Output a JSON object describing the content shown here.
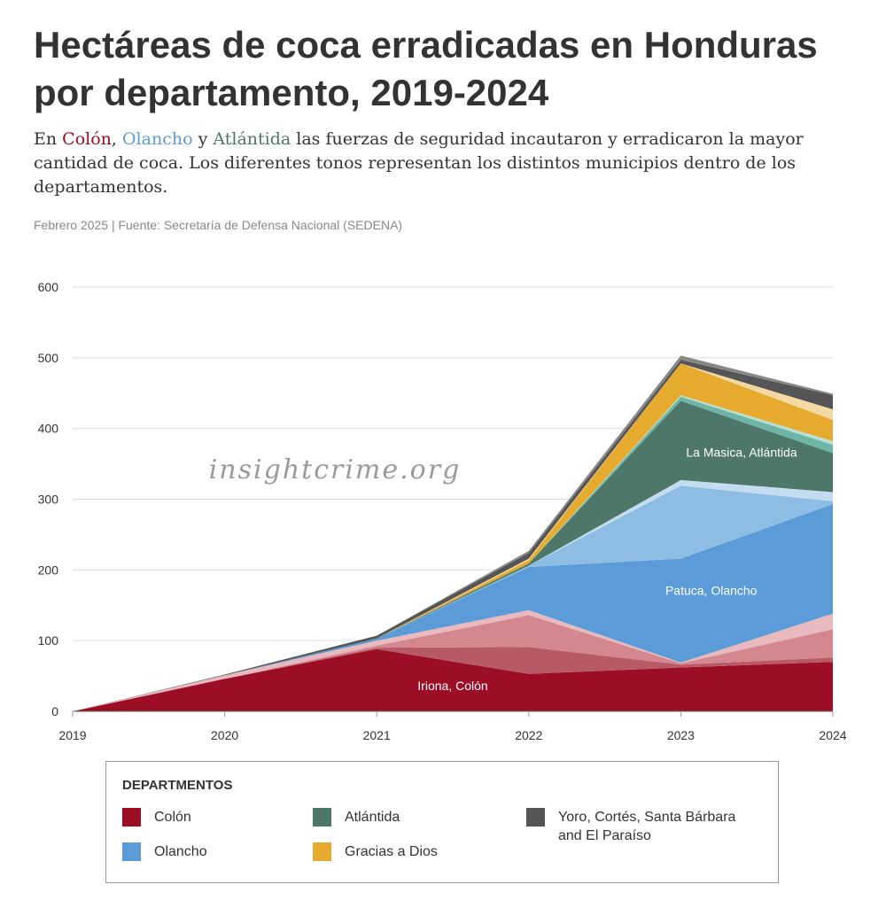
{
  "title": "Hectáreas de coca erradicadas en Honduras por departamento, 2019-2024",
  "subtitle": {
    "prefix": "En ",
    "colon": "Colón",
    "sep1": ", ",
    "olancho": "Olancho",
    "sep2": " y ",
    "atlantida": "Atlántida",
    "rest": " las fuerzas de seguridad incautaron y erradicaron la mayor cantidad de coca. Los diferentes tonos representan los distintos municipios dentro de los departamentos."
  },
  "source": "Febrero 2025 | Fuente: Secretaría de Defensa Nacional (SEDENA)",
  "watermark": "insightcrime.org",
  "colors": {
    "colon": "#9b0e26",
    "olancho": "#5b9bd8",
    "atlantida": "#4d7768",
    "gracias": "#e6ab2e",
    "otros": "#555555"
  },
  "legend": {
    "title": "DEPARTMENTOS",
    "items": [
      {
        "label": "Colón",
        "color": "#9b0e26"
      },
      {
        "label": "Olancho",
        "color": "#5b9bd8"
      },
      {
        "label": "Atlántida",
        "color": "#4d7768"
      },
      {
        "label": "Gracias a Dios",
        "color": "#e6ab2e"
      },
      {
        "label": "Yoro, Cortés, Santa Bárbara and El Paraíso",
        "color": "#555555"
      }
    ]
  },
  "chart_data": {
    "type": "area",
    "stacked": true,
    "title": "Hectáreas de coca erradicadas en Honduras por departamento, 2019-2024",
    "x": [
      2019,
      2020,
      2021,
      2022,
      2023,
      2024
    ],
    "ylim": [
      0,
      600
    ],
    "yticks": [
      0,
      100,
      200,
      300,
      400,
      500,
      600
    ],
    "grid": true,
    "legend_position": "bottom",
    "annotations": [
      {
        "text": "Iriona, Colón",
        "x": 2021.5,
        "y": 30
      },
      {
        "text": "Patuca, Olancho",
        "x": 2023.2,
        "y": 165
      },
      {
        "text": "La Masica, Atlántida",
        "x": 2023.4,
        "y": 360
      }
    ],
    "series": [
      {
        "name": "Colón",
        "department": "Colón",
        "color": "#9b0e26",
        "values": [
          0,
          46,
          88,
          53,
          62,
          70
        ]
      },
      {
        "department": "Colón",
        "color": "#b85a66",
        "values": [
          0,
          0,
          2,
          38,
          4,
          6
        ]
      },
      {
        "department": "Colón",
        "color": "#d4878f",
        "values": [
          0,
          0,
          3,
          45,
          2,
          40
        ]
      },
      {
        "department": "Colón",
        "color": "#e8bac0",
        "values": [
          0,
          5,
          7,
          7,
          1,
          22
        ]
      },
      {
        "name": "Olancho",
        "department": "Olancho",
        "color": "#5b9bd8",
        "values": [
          0,
          0,
          3,
          61,
          147,
          155
        ]
      },
      {
        "department": "Olancho",
        "color": "#8dbde2",
        "values": [
          0,
          0,
          0,
          2,
          103,
          4
        ]
      },
      {
        "department": "Olancho",
        "color": "#c3dcf0",
        "values": [
          0,
          0,
          0,
          0,
          8,
          13
        ]
      },
      {
        "name": "Atlántida",
        "department": "Atlántida",
        "color": "#4d7768",
        "values": [
          0,
          0,
          0,
          3,
          112,
          55
        ]
      },
      {
        "department": "Atlántida",
        "color": "#6fb5a5",
        "values": [
          0,
          0,
          0,
          0,
          6,
          12
        ]
      },
      {
        "department": "Atlántida",
        "color": "#b7e0d6",
        "values": [
          0,
          0,
          0,
          0,
          2,
          5
        ]
      },
      {
        "name": "Gracias a Dios",
        "department": "Gracias a Dios",
        "color": "#e6ab2e",
        "values": [
          0,
          0,
          0,
          5,
          45,
          30
        ]
      },
      {
        "department": "Gracias a Dios",
        "color": "#f5d9a3",
        "values": [
          0,
          0,
          0,
          2,
          0,
          15
        ]
      },
      {
        "name": "Yoro, Cortés, Santa Bárbara and El Paraíso",
        "department": "Yoro, Cortés, Santa Bárbara and El Paraíso",
        "color": "#555555",
        "values": [
          0,
          1,
          4,
          8,
          5,
          20
        ]
      },
      {
        "department": "Yoro, Cortés, Santa Bárbara and El Paraíso",
        "color": "#888888",
        "values": [
          0,
          0,
          0,
          3,
          6,
          2
        ]
      }
    ]
  }
}
